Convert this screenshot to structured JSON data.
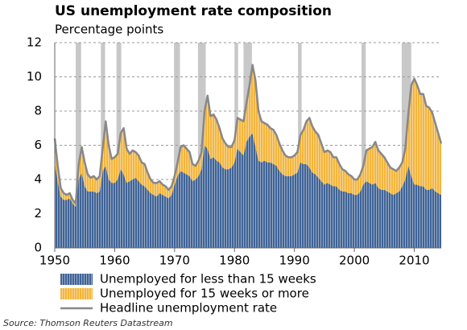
{
  "chart_data": {
    "type": "area",
    "title": "US unemployment rate composition",
    "subtitle": "Percentage points",
    "source": "Source: Thomson Reuters Datastream",
    "x": [
      1950.0,
      1950.5,
      1951.0,
      1951.5,
      1952.0,
      1952.5,
      1953.0,
      1953.5,
      1954.0,
      1954.5,
      1955.0,
      1955.5,
      1956.0,
      1956.5,
      1957.0,
      1957.5,
      1958.0,
      1958.5,
      1959.0,
      1959.5,
      1960.0,
      1960.5,
      1961.0,
      1961.5,
      1962.0,
      1962.5,
      1963.0,
      1963.5,
      1964.0,
      1964.5,
      1965.0,
      1965.5,
      1966.0,
      1966.5,
      1967.0,
      1967.5,
      1968.0,
      1968.5,
      1969.0,
      1969.5,
      1970.0,
      1970.5,
      1971.0,
      1971.5,
      1972.0,
      1972.5,
      1973.0,
      1973.5,
      1974.0,
      1974.5,
      1975.0,
      1975.5,
      1976.0,
      1976.5,
      1977.0,
      1977.5,
      1978.0,
      1978.5,
      1979.0,
      1979.5,
      1980.0,
      1980.5,
      1981.0,
      1981.5,
      1982.0,
      1982.5,
      1983.0,
      1983.5,
      1984.0,
      1984.5,
      1985.0,
      1985.5,
      1986.0,
      1986.5,
      1987.0,
      1987.5,
      1988.0,
      1988.5,
      1989.0,
      1989.5,
      1990.0,
      1990.5,
      1991.0,
      1991.5,
      1992.0,
      1992.5,
      1993.0,
      1993.5,
      1994.0,
      1994.5,
      1995.0,
      1995.5,
      1996.0,
      1996.5,
      1997.0,
      1997.5,
      1998.0,
      1998.5,
      1999.0,
      1999.5,
      2000.0,
      2000.5,
      2001.0,
      2001.5,
      2002.0,
      2002.5,
      2003.0,
      2003.5,
      2004.0,
      2004.5,
      2005.0,
      2005.5,
      2006.0,
      2006.5,
      2007.0,
      2007.5,
      2008.0,
      2008.5,
      2009.0,
      2009.5,
      2010.0,
      2010.5,
      2011.0,
      2011.5,
      2012.0,
      2012.5,
      2013.0,
      2013.5,
      2014.0,
      2014.5
    ],
    "series": [
      {
        "name": "Unemployed for less than 15 weeks",
        "color": "#3f6396",
        "kind": "area",
        "values": [
          5.0,
          3.9,
          3.0,
          2.8,
          2.8,
          2.9,
          2.6,
          2.4,
          4.0,
          4.4,
          3.6,
          3.3,
          3.3,
          3.3,
          3.2,
          3.3,
          4.5,
          4.8,
          4.0,
          3.8,
          3.8,
          4.0,
          4.6,
          4.3,
          3.8,
          3.9,
          4.0,
          4.1,
          3.9,
          3.7,
          3.6,
          3.4,
          3.2,
          3.1,
          3.0,
          3.2,
          3.1,
          3.0,
          2.9,
          3.1,
          3.7,
          4.2,
          4.5,
          4.4,
          4.3,
          4.2,
          3.9,
          4.0,
          4.2,
          4.6,
          6.0,
          5.8,
          5.2,
          5.3,
          5.1,
          5.0,
          4.7,
          4.6,
          4.6,
          4.7,
          5.0,
          5.8,
          5.6,
          5.4,
          6.2,
          6.5,
          6.7,
          5.9,
          5.1,
          5.0,
          5.1,
          5.0,
          5.0,
          4.9,
          4.8,
          4.5,
          4.3,
          4.2,
          4.2,
          4.2,
          4.3,
          4.4,
          5.0,
          4.9,
          4.9,
          4.7,
          4.4,
          4.3,
          4.1,
          3.9,
          3.7,
          3.8,
          3.7,
          3.6,
          3.6,
          3.4,
          3.3,
          3.3,
          3.2,
          3.2,
          3.1,
          3.1,
          3.3,
          3.7,
          3.9,
          3.8,
          3.7,
          3.8,
          3.5,
          3.4,
          3.4,
          3.3,
          3.2,
          3.1,
          3.2,
          3.3,
          3.6,
          4.0,
          4.8,
          4.2,
          3.7,
          3.7,
          3.6,
          3.6,
          3.4,
          3.4,
          3.5,
          3.3,
          3.2,
          3.1
        ]
      },
      {
        "name": "Unemployed for 15 weeks or more",
        "color": "#f3b53c",
        "kind": "area",
        "values": [
          1.4,
          0.9,
          0.5,
          0.4,
          0.3,
          0.3,
          0.2,
          0.2,
          0.9,
          1.5,
          1.4,
          1.0,
          0.8,
          0.9,
          0.8,
          0.9,
          1.3,
          2.6,
          2.0,
          1.4,
          1.5,
          1.5,
          2.1,
          2.7,
          2.0,
          1.6,
          1.7,
          1.5,
          1.5,
          1.3,
          1.3,
          1.0,
          0.8,
          0.7,
          0.8,
          0.7,
          0.6,
          0.6,
          0.5,
          0.5,
          0.5,
          0.8,
          1.4,
          1.6,
          1.5,
          1.4,
          1.0,
          0.8,
          0.9,
          1.0,
          2.0,
          3.1,
          2.5,
          2.5,
          2.4,
          2.0,
          1.7,
          1.5,
          1.3,
          1.2,
          1.3,
          1.8,
          1.9,
          2.0,
          2.3,
          3.0,
          4.0,
          3.9,
          2.9,
          2.4,
          2.2,
          2.2,
          2.0,
          2.0,
          1.8,
          1.6,
          1.4,
          1.2,
          1.1,
          1.1,
          1.1,
          1.2,
          1.6,
          2.0,
          2.5,
          2.9,
          2.7,
          2.5,
          2.5,
          2.2,
          1.9,
          1.9,
          1.9,
          1.7,
          1.7,
          1.5,
          1.3,
          1.2,
          1.1,
          1.0,
          0.9,
          0.9,
          1.0,
          1.1,
          1.8,
          2.0,
          2.2,
          2.4,
          2.2,
          2.1,
          1.9,
          1.7,
          1.5,
          1.5,
          1.3,
          1.4,
          1.4,
          1.8,
          3.0,
          5.3,
          6.2,
          5.8,
          5.4,
          5.4,
          4.9,
          4.8,
          4.4,
          4.0,
          3.5,
          3.0
        ]
      },
      {
        "name": "Headline unemployment rate",
        "color": "#888888",
        "kind": "line",
        "values": [
          6.4,
          4.8,
          3.5,
          3.2,
          3.1,
          3.2,
          2.8,
          2.6,
          4.9,
          5.9,
          5.0,
          4.3,
          4.1,
          4.2,
          4.0,
          4.2,
          5.8,
          7.4,
          6.0,
          5.2,
          5.3,
          5.5,
          6.7,
          7.0,
          5.8,
          5.5,
          5.7,
          5.6,
          5.4,
          5.0,
          4.9,
          4.4,
          4.0,
          3.8,
          3.8,
          3.9,
          3.7,
          3.6,
          3.4,
          3.6,
          4.2,
          5.0,
          5.9,
          6.0,
          5.8,
          5.6,
          4.9,
          4.8,
          5.1,
          5.6,
          8.0,
          8.9,
          7.7,
          7.8,
          7.5,
          7.0,
          6.4,
          6.1,
          5.9,
          5.9,
          6.3,
          7.6,
          7.5,
          7.4,
          8.5,
          9.5,
          10.7,
          9.8,
          8.0,
          7.4,
          7.3,
          7.2,
          7.0,
          6.9,
          6.6,
          6.1,
          5.7,
          5.4,
          5.3,
          5.3,
          5.4,
          5.6,
          6.6,
          6.9,
          7.4,
          7.6,
          7.1,
          6.8,
          6.6,
          6.1,
          5.6,
          5.7,
          5.6,
          5.3,
          5.3,
          4.9,
          4.6,
          4.5,
          4.3,
          4.2,
          4.0,
          4.0,
          4.3,
          4.8,
          5.7,
          5.8,
          5.9,
          6.2,
          5.7,
          5.5,
          5.3,
          5.0,
          4.7,
          4.6,
          4.5,
          4.7,
          5.0,
          5.8,
          7.8,
          9.5,
          9.9,
          9.5,
          9.0,
          9.0,
          8.3,
          8.2,
          7.9,
          7.3,
          6.7,
          6.1
        ]
      }
    ],
    "recessions": [
      [
        1953.5,
        1954.4
      ],
      [
        1957.7,
        1958.4
      ],
      [
        1960.3,
        1961.1
      ],
      [
        1969.9,
        1970.9
      ],
      [
        1973.9,
        1975.2
      ],
      [
        1980.0,
        1980.6
      ],
      [
        1981.5,
        1982.9
      ],
      [
        1990.6,
        1991.2
      ],
      [
        2001.2,
        2001.9
      ],
      [
        2007.9,
        2009.5
      ]
    ],
    "recession_color": "#c8c8c8",
    "xlim": [
      1950,
      2014.5
    ],
    "xticks": [
      1950,
      1960,
      1970,
      1980,
      1990,
      2000,
      2010
    ],
    "ylim": [
      0,
      12
    ],
    "yticks": [
      0,
      2,
      4,
      6,
      8,
      10,
      12
    ],
    "grid": true
  }
}
